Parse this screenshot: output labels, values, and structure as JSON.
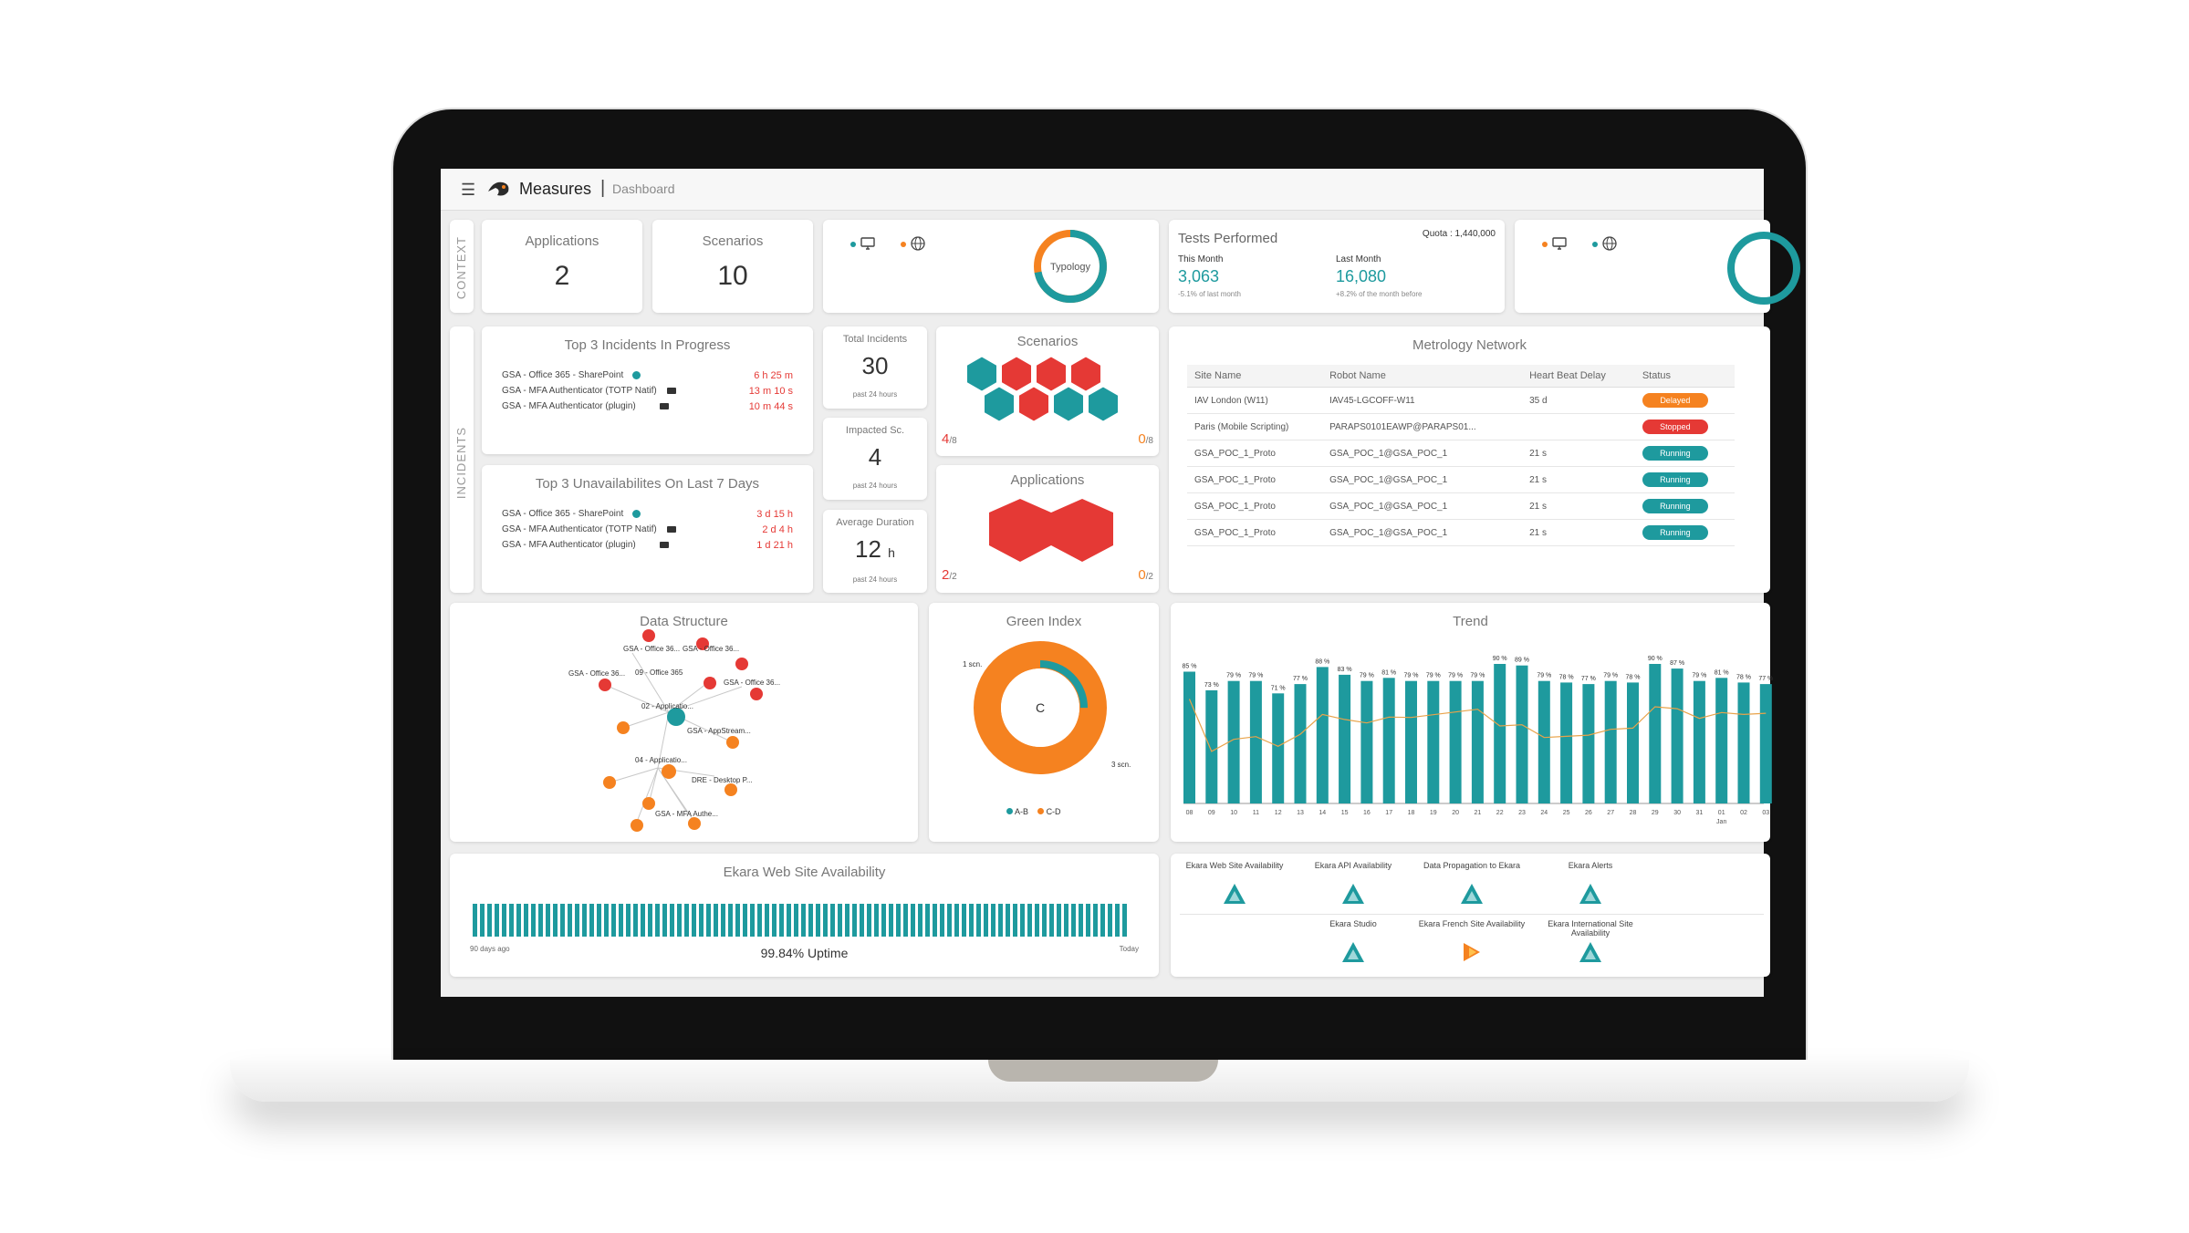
{
  "header": {
    "menu_icon": "hamburger-icon",
    "brand": "Measures",
    "separator": "|",
    "breadcrumb": "Dashboard"
  },
  "sections": {
    "context": "CONTEXT",
    "incidents": "INCIDENTS"
  },
  "kpis": {
    "applications": {
      "label": "Applications",
      "value": "2"
    },
    "scenarios": {
      "label": "Scenarios",
      "value": "10"
    }
  },
  "typology": {
    "label": "Typology",
    "device_icon": "monitor-icon",
    "web_icon": "globe-icon",
    "teal_share": 0.72
  },
  "tests": {
    "title": "Tests Performed",
    "quota": "Quota : 1,440,000",
    "this_month_label": "This Month",
    "this_month_value": "3,063",
    "this_month_note": "-5.1% of last month",
    "last_month_label": "Last Month",
    "last_month_value": "16,080",
    "last_month_note": "+8.2% of the month before"
  },
  "incidents_progress": {
    "title": "Top 3 Incidents In Progress",
    "rows": [
      {
        "name": "GSA - Office 365 - SharePoint",
        "icon": "globe-icon",
        "value": "6 h 25 m"
      },
      {
        "name": "GSA - MFA Authenticator (TOTP Natif)",
        "icon": "laptop-icon",
        "value": "13 m 10 s"
      },
      {
        "name": "GSA - MFA Authenticator (plugin)",
        "icon": "laptop-icon",
        "value": "10 m 44 s"
      }
    ]
  },
  "unavailabilities": {
    "title": "Top 3 Unavailabilites On Last 7 Days",
    "rows": [
      {
        "name": "GSA - Office 365 - SharePoint",
        "icon": "globe-icon",
        "value": "3 d 15 h"
      },
      {
        "name": "GSA - MFA Authenticator (TOTP Natif)",
        "icon": "laptop-icon",
        "value": "2 d 4 h"
      },
      {
        "name": "GSA - MFA Authenticator (plugin)",
        "icon": "laptop-icon",
        "value": "1 d 21 h"
      }
    ]
  },
  "total_incidents": {
    "label": "Total Incidents",
    "value": "30",
    "note": "past 24 hours"
  },
  "impacted": {
    "label": "Impacted Sc.",
    "value": "4",
    "note": "past 24 hours"
  },
  "avg_duration": {
    "label": "Average Duration",
    "value": "12",
    "unit": "h",
    "note": "past 24 hours"
  },
  "scenarios_hex": {
    "title": "Scenarios",
    "left_num": "4",
    "left_den": "/8",
    "right_num": "0",
    "right_den": "/8"
  },
  "apps_hex": {
    "title": "Applications",
    "left_num": "2",
    "left_den": "/2",
    "right_num": "0",
    "right_den": "/2"
  },
  "metrology": {
    "title": "Metrology Network",
    "columns": [
      "Site Name",
      "Robot Name",
      "Heart Beat Delay",
      "Status"
    ],
    "rows": [
      {
        "site": "IAV London (W11)",
        "robot": "IAV45-LGCOFF-W11",
        "delay": "35 d",
        "status": "Delayed",
        "color": "#f58220"
      },
      {
        "site": "Paris (Mobile Scripting)",
        "robot": "PARAPS0101EAWP@PARAPS01...",
        "delay": "",
        "status": "Stopped",
        "color": "#e53935"
      },
      {
        "site": "GSA_POC_1_Proto",
        "robot": "GSA_POC_1@GSA_POC_1",
        "delay": "21 s",
        "status": "Running",
        "color": "#1e9a9e"
      },
      {
        "site": "GSA_POC_1_Proto",
        "robot": "GSA_POC_1@GSA_POC_1",
        "delay": "21 s",
        "status": "Running",
        "color": "#1e9a9e"
      },
      {
        "site": "GSA_POC_1_Proto",
        "robot": "GSA_POC_1@GSA_POC_1",
        "delay": "21 s",
        "status": "Running",
        "color": "#1e9a9e"
      },
      {
        "site": "GSA_POC_1_Proto",
        "robot": "GSA_POC_1@GSA_POC_1",
        "delay": "21 s",
        "status": "Running",
        "color": "#1e9a9e"
      }
    ]
  },
  "data_structure": {
    "title": "Data Structure",
    "labels": [
      "GSA - Office 36...",
      "GSA - Office 36...",
      "GSA - Office 36...",
      "09 - Office 365",
      "GSA - Office 36...",
      "02 - Applicatio...",
      "GSA - AppStream...",
      "04 - Applicatio...",
      "DRE - Desktop P...",
      "GSA - MFA Authe..."
    ]
  },
  "green_index": {
    "title": "Green Index",
    "center": "C",
    "label_small": "1 scn.",
    "label_large": "3 scn.",
    "legend_ab": "A-B",
    "legend_cd": "C-D",
    "ab_share": 0.25
  },
  "chart_data": {
    "type": "bar",
    "title": "Trend",
    "categories": [
      "08",
      "09",
      "10",
      "11",
      "12",
      "13",
      "14",
      "15",
      "16",
      "17",
      "18",
      "19",
      "20",
      "21",
      "22",
      "23",
      "24",
      "25",
      "26",
      "27",
      "28",
      "29",
      "30",
      "31",
      "01",
      "02",
      "03"
    ],
    "values": [
      85,
      73,
      79,
      79,
      71,
      77,
      88,
      83,
      79,
      81,
      79,
      79,
      79,
      79,
      90,
      89,
      79,
      78,
      77,
      79,
      78,
      90,
      87,
      79,
      81,
      78,
      77
    ],
    "series": [
      {
        "name": "",
        "values": [
          85,
          73,
          79,
          79,
          71,
          77,
          88,
          83,
          79,
          81,
          79,
          79,
          79,
          79,
          90,
          89,
          79,
          78,
          77,
          79,
          78,
          90,
          87,
          79,
          81,
          78,
          77
        ]
      }
    ],
    "extra_axis_label": "Jan",
    "ylim": [
      0,
      100
    ]
  },
  "availability": {
    "title": "Ekara Web Site Availability",
    "left": "90 days ago",
    "center": "99.84% Uptime",
    "right": "Today"
  },
  "monitors": [
    {
      "label": "Ekara Web Site Availability",
      "status": "up"
    },
    {
      "label": "Ekara API Availability",
      "status": "up"
    },
    {
      "label": "Data Propagation to Ekara",
      "status": "up"
    },
    {
      "label": "Ekara Alerts",
      "status": "up"
    },
    {
      "label": "Ekara Studio",
      "status": "up"
    },
    {
      "label": "Ekara French Site Availability",
      "status": "warn"
    },
    {
      "label": "Ekara International Site Availability",
      "status": "up"
    }
  ],
  "colors": {
    "teal": "#1e9a9e",
    "orange": "#f58220",
    "red": "#e53935"
  }
}
